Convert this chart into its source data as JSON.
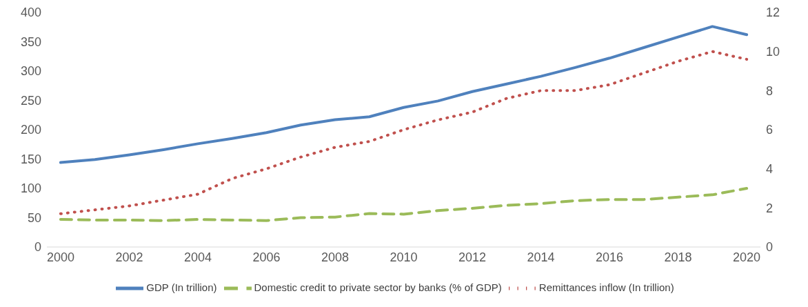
{
  "chart_data": {
    "type": "line",
    "x": [
      2000,
      2001,
      2002,
      2003,
      2004,
      2005,
      2006,
      2007,
      2008,
      2009,
      2010,
      2011,
      2012,
      2013,
      2014,
      2015,
      2016,
      2017,
      2018,
      2019,
      2020
    ],
    "xlim": [
      1999.6,
      2020.4
    ],
    "xticks": [
      2000,
      2002,
      2004,
      2006,
      2008,
      2010,
      2012,
      2014,
      2016,
      2018,
      2020
    ],
    "ylim": [
      0,
      400
    ],
    "yticks": [
      0,
      50,
      100,
      150,
      200,
      250,
      300,
      350,
      400
    ],
    "y2lim": [
      0,
      12
    ],
    "y2ticks": [
      0,
      2,
      4,
      6,
      8,
      10,
      12
    ],
    "legend": "bottom",
    "grid": false,
    "series": [
      {
        "name": "GDP (In trillion)",
        "color": "#4f81bd",
        "line_style": "solid",
        "values": [
          144,
          149,
          157,
          166,
          176,
          185,
          195,
          208,
          217,
          222,
          238,
          249,
          265,
          278,
          291,
          306,
          322,
          340,
          358,
          376,
          362
        ]
      },
      {
        "name": "Domestic credit to private sector by banks (% of GDP)",
        "color": "#9bbb59",
        "line_style": "dashed",
        "values": [
          47,
          46,
          46,
          45,
          47,
          46,
          45,
          50,
          51,
          57,
          56,
          62,
          66,
          71,
          74,
          79,
          81,
          81,
          85,
          89,
          100
        ]
      },
      {
        "name": "Remittances inflow (In trillion)",
        "color": "#c0504d",
        "line_style": "dotted",
        "axis": "y2",
        "values": [
          1.7,
          1.9,
          2.1,
          2.4,
          2.7,
          3.5,
          4.0,
          4.6,
          5.1,
          5.4,
          6.0,
          6.5,
          6.9,
          7.6,
          8.0,
          8.0,
          8.3,
          8.9,
          9.5,
          10.0,
          9.6
        ]
      }
    ]
  }
}
